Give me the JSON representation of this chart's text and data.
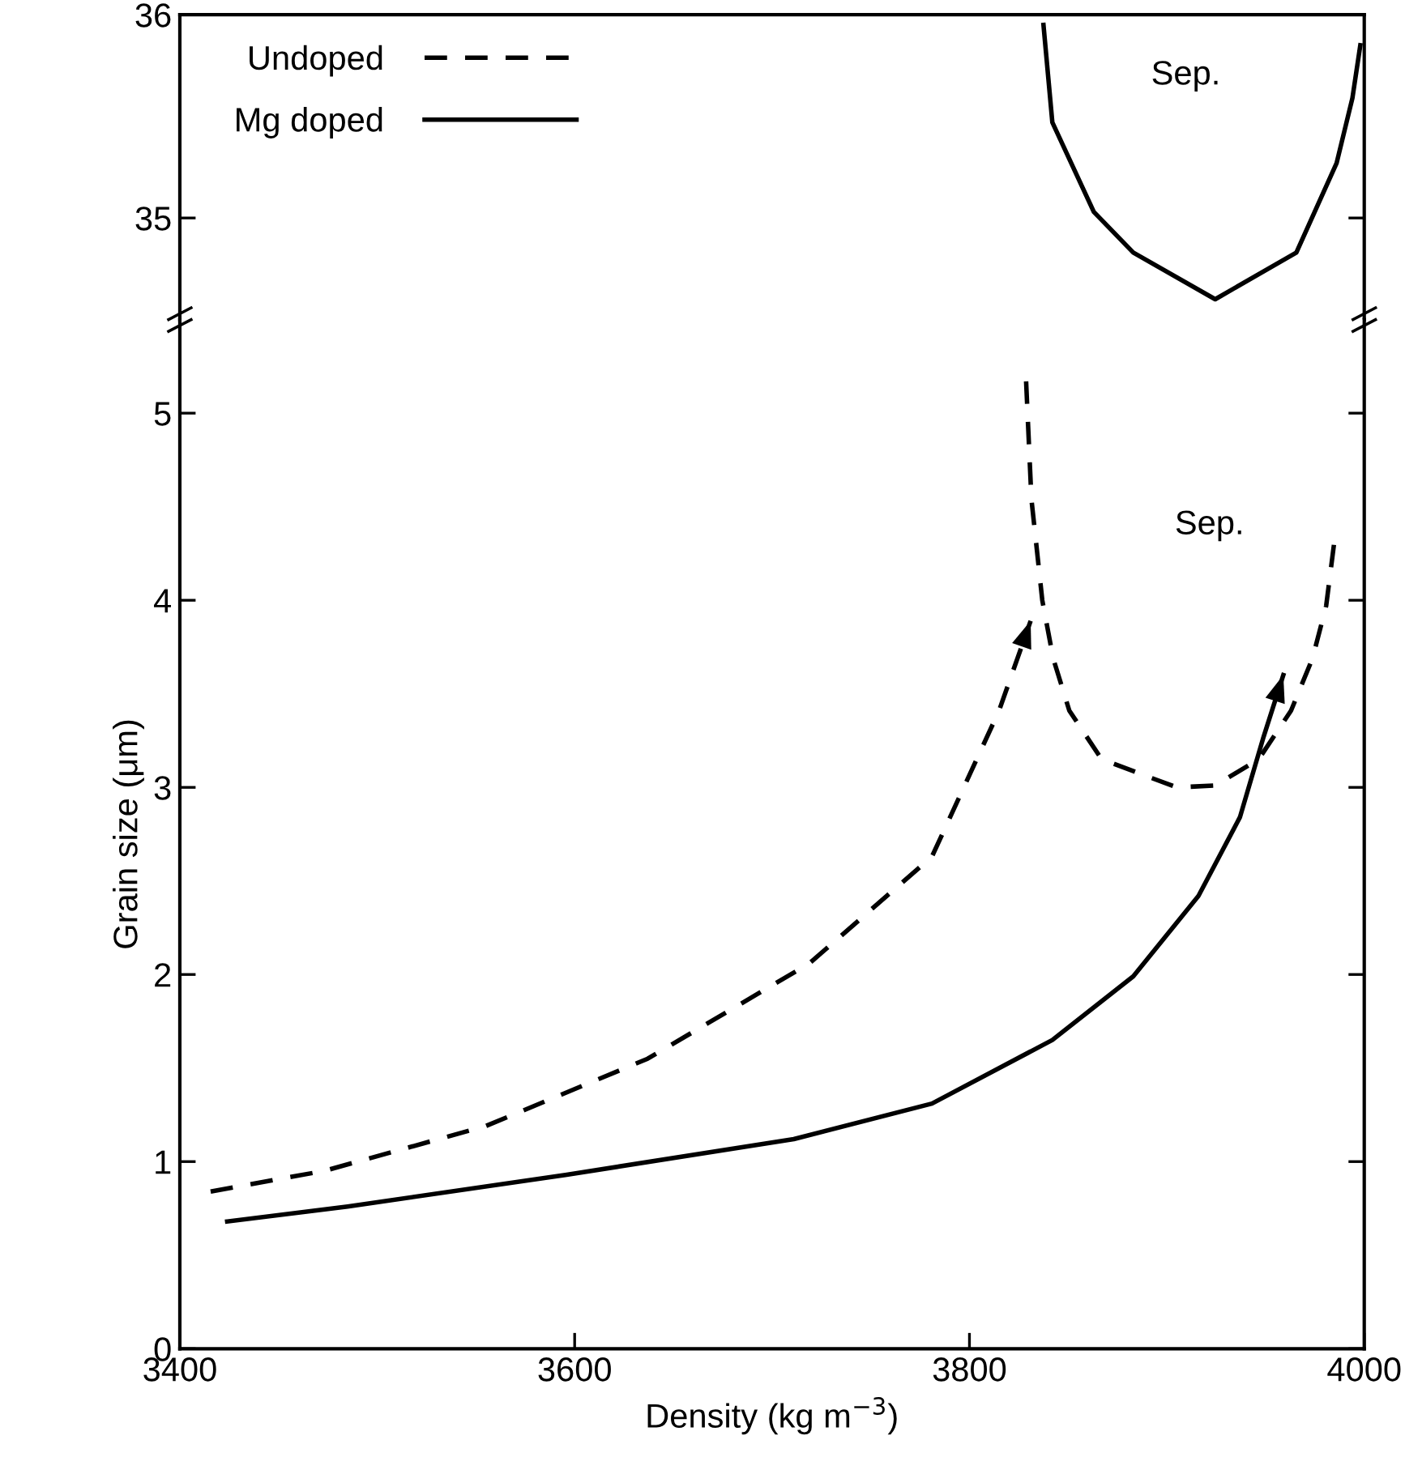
{
  "chart_data": [
    {
      "type": "line",
      "xlim": [
        3400,
        4000
      ],
      "ylim": [
        34.5,
        36
      ],
      "yticks": [
        35,
        36
      ],
      "tick_labels": "y",
      "grid": false,
      "series": [
        {
          "color": "#000000",
          "line_style": "solid",
          "x": [
            3837.5,
            3842,
            3863,
            3883,
            3924.5,
            3965.6,
            3986,
            3994,
            3998
          ],
          "values": [
            35.95,
            35.47,
            35.03,
            34.83,
            34.6,
            34.83,
            35.27,
            35.59,
            35.85
          ]
        }
      ],
      "annotations": [
        "Sep."
      ]
    },
    {
      "type": "line",
      "xlim": [
        3400,
        4000
      ],
      "ylim": [
        0,
        5.5
      ],
      "yticks": [
        0,
        1,
        2,
        3,
        4,
        5
      ],
      "xticks": [
        3400,
        3600,
        3800,
        4000
      ],
      "grid": false,
      "xlabel": "Density (kg m$^{−3}$)",
      "ylabel": "Grain size (μm)",
      "legend": "top left",
      "series": [
        {
          "name": "Undoped",
          "color": "#000000",
          "line_style": "dashed",
          "x": [
            3415.6,
            3473,
            3555,
            3637,
            3719,
            3781,
            3815,
            3831
          ],
          "values": [
            0.84,
            0.95,
            1.19,
            1.55,
            2.06,
            2.63,
            3.41,
            3.89
          ]
        },
        {
          "color": "#000000",
          "line_style": "dashed",
          "x": [
            3828.7,
            3831.4,
            3836.9,
            3842.4,
            3850.6,
            3867,
            3905,
            3924.5,
            3946.5,
            3962.9,
            3973.8,
            3980.7,
            3984.8
          ],
          "values": [
            5.17,
            4.54,
            4.0,
            3.69,
            3.41,
            3.15,
            3.0,
            3.01,
            3.15,
            3.41,
            3.69,
            3.97,
            4.31
          ]
        },
        {
          "name": "Mg doped",
          "color": "#000000",
          "line_style": "solid",
          "x": [
            3424,
            3485,
            3596,
            3711,
            3781,
            3842,
            3883,
            3916,
            3937,
            3949,
            3959
          ],
          "values": [
            0.68,
            0.76,
            0.93,
            1.12,
            1.31,
            1.65,
            1.99,
            2.42,
            2.84,
            3.27,
            3.6
          ]
        }
      ],
      "annotations": [
        "Sep."
      ]
    }
  ]
}
